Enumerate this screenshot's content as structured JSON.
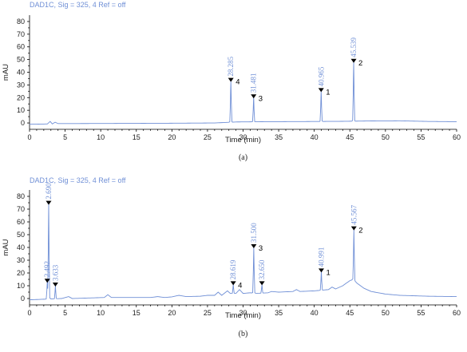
{
  "chart_data": [
    {
      "type": "line",
      "panel_label": "(a)",
      "header": "DAD1C, Sig = 325, 4   Ref = off",
      "xlabel": "Time (min)",
      "ylabel": "mAU",
      "xlim": [
        0,
        60
      ],
      "ylim": [
        -5,
        85
      ],
      "xticks": [
        "0",
        "5",
        "10",
        "15",
        "20",
        "25",
        "30",
        "35",
        "40",
        "45",
        "50",
        "55",
        "60"
      ],
      "yticks": [
        "0",
        "10",
        "20",
        "30",
        "40",
        "50",
        "60",
        "70",
        "80"
      ],
      "line_color": "#6f8fd6",
      "baseline": [
        [
          0,
          -1
        ],
        [
          2.5,
          -0.8
        ],
        [
          2.9,
          1.2
        ],
        [
          3.2,
          -0.8
        ],
        [
          3.6,
          0.6
        ],
        [
          4,
          -0.5
        ],
        [
          10,
          -0.4
        ],
        [
          20,
          -0.2
        ],
        [
          26,
          0
        ],
        [
          27.5,
          0.4
        ],
        [
          29,
          0.8
        ],
        [
          33,
          1
        ],
        [
          38,
          1.1
        ],
        [
          44,
          1.3
        ],
        [
          48,
          1.6
        ],
        [
          52,
          1.7
        ],
        [
          56,
          1.2
        ],
        [
          60,
          1
        ]
      ],
      "peaks": [
        {
          "rt": "28.285",
          "x": 28.285,
          "height": 33,
          "peak_id": "4"
        },
        {
          "rt": "31.481",
          "x": 31.481,
          "height": 20,
          "peak_id": "3"
        },
        {
          "rt": "40.965",
          "x": 40.965,
          "height": 25,
          "peak_id": "1"
        },
        {
          "rt": "45.539",
          "x": 45.539,
          "height": 48,
          "peak_id": "2"
        }
      ]
    },
    {
      "type": "line",
      "panel_label": "(b)",
      "header": "DAD1C, Sig = 325, 4   Ref = off",
      "xlabel": "Time (min)",
      "ylabel": "mAU",
      "xlim": [
        0,
        60
      ],
      "ylim": [
        -5,
        85
      ],
      "xticks": [
        "0",
        "5",
        "10",
        "15",
        "20",
        "25",
        "30",
        "35",
        "40",
        "45",
        "50",
        "55",
        "60"
      ],
      "yticks": [
        "0",
        "10",
        "20",
        "30",
        "40",
        "50",
        "60",
        "70",
        "80"
      ],
      "line_color": "#6f8fd6",
      "baseline": [
        [
          0,
          -1
        ],
        [
          2.2,
          -0.5
        ],
        [
          3.2,
          -0.3
        ],
        [
          4.5,
          0
        ],
        [
          5.5,
          1.5
        ],
        [
          6,
          0
        ],
        [
          10.5,
          0.8
        ],
        [
          11,
          3
        ],
        [
          11.5,
          0.8
        ],
        [
          17,
          0.8
        ],
        [
          18,
          1.5
        ],
        [
          19,
          0.8
        ],
        [
          20,
          1.3
        ],
        [
          21,
          2.5
        ],
        [
          22,
          1.5
        ],
        [
          24,
          1.8
        ],
        [
          25,
          2.5
        ],
        [
          26,
          2.5
        ],
        [
          26.5,
          5
        ],
        [
          27,
          2.5
        ],
        [
          27.8,
          6
        ],
        [
          28.2,
          4
        ],
        [
          29,
          4
        ],
        [
          29.5,
          7
        ],
        [
          30,
          4
        ],
        [
          31,
          4.5
        ],
        [
          32,
          4
        ],
        [
          33.5,
          4.5
        ],
        [
          34,
          5.5
        ],
        [
          35,
          5
        ],
        [
          37,
          5.5
        ],
        [
          37.5,
          7
        ],
        [
          38,
          5.5
        ],
        [
          40,
          6
        ],
        [
          42,
          7
        ],
        [
          42.5,
          9
        ],
        [
          43,
          7.5
        ],
        [
          44,
          10
        ],
        [
          45,
          14
        ],
        [
          45.5,
          15
        ],
        [
          46,
          12
        ],
        [
          47,
          8
        ],
        [
          48,
          5.5
        ],
        [
          50,
          3.5
        ],
        [
          52,
          2.5
        ],
        [
          56,
          1.8
        ],
        [
          60,
          1.5
        ]
      ],
      "peaks": [
        {
          "rt": "2.492",
          "x": 2.492,
          "height": 13,
          "peak_id": ""
        },
        {
          "rt": "2.690",
          "x": 2.69,
          "height": 74,
          "peak_id": ""
        },
        {
          "rt": "3.633",
          "x": 3.633,
          "height": 10,
          "peak_id": ""
        },
        {
          "rt": "28.619",
          "x": 28.619,
          "height": 11,
          "peak_id": "4"
        },
        {
          "rt": "31.500",
          "x": 31.5,
          "height": 40,
          "peak_id": "3"
        },
        {
          "rt": "32.650",
          "x": 32.65,
          "height": 11,
          "peak_id": ""
        },
        {
          "rt": "40.991",
          "x": 40.991,
          "height": 21,
          "peak_id": "1"
        },
        {
          "rt": "45.567",
          "x": 45.567,
          "height": 54,
          "peak_id": "2"
        }
      ]
    }
  ]
}
